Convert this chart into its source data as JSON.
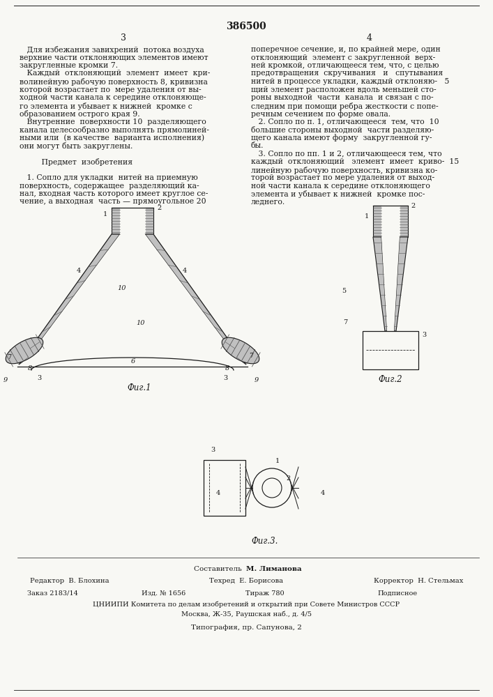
{
  "page_width": 7.07,
  "page_height": 10.0,
  "dpi": 100,
  "bg_color": "#f8f8f4",
  "text_color": "#1a1a1a",
  "patent_number": "386500",
  "col_numbers": [
    "3",
    "4"
  ],
  "left_col_text": [
    "   Для избежания завихрений  потока воздуха",
    "верхние части отклоняющих элементов имеют",
    "закругленные кромки 7.",
    "   Каждый  отклоняющий  элемент  имеет  кри-",
    "волинейную рабочую поверхность 8, кривизна",
    "которой возрастает по  мере удаления от вы-",
    "ходной части канала к середине отклоняюще-",
    "го элемента и убывает к нижней  кромке с",
    "образованием острого края 9.",
    "   Внутренние  поверхности 10  разделяющего",
    "канала целесообразно выполнять прямолиней-",
    "ными или  (в качестве  варианта исполнения)",
    "они могут быть закруглены.",
    "",
    "         Предмет  изобретения",
    "",
    "   1. Сопло для укладки  нитей на приемную",
    "поверхность, содержащее  разделяющий ка-",
    "нал, входная часть которого имеет круглое се-",
    "чение, а выходная  часть — прямоугольное 20"
  ],
  "right_col_text": [
    "поперечное сечение, и, по крайней мере, один",
    "отклоняющий  элемент с закругленной  верх-",
    "ней кромкой, отличающееся тем, что, с целью",
    "предотвращения  скручивания   и   спутывания",
    "нитей в процессе укладки, каждый отклоняю-   5",
    "щий элемент расположен вдоль меньшей сто-",
    "роны выходной  части  канала  и связан с по-",
    "следним при помощи ребра жесткости с попе-",
    "речным сечением по форме овала.",
    "   2. Сопло по п. 1, отличающееся  тем, что  10",
    "большие стороны выходной  части разделяю-",
    "щего канала имеют форму  закругленной гу-",
    "бы.",
    "   3. Сопло по пп. 1 и 2, отличающееся тем, что",
    "каждый  отклоняющий   элемент  имеет  криво-  15",
    "линейную рабочую поверхность, кривизна ко-",
    "торой возрастает по мере удаления от выход-",
    "ной части канала к середине отклоняющего",
    "элемента и убывает к нижней  кромке пос-",
    "леднего."
  ],
  "bottom_composer": "Составитель  М. Лиманова",
  "bottom_editor": "Редактор  В. Блохина",
  "bottom_tech": "Техред  Е. Борисова",
  "bottom_corrector": "Корректор  Н. Стельмах",
  "bottom_order": "Заказ 2183/14",
  "bottom_izd": "Изд. № 1656",
  "bottom_tirazh": "Тираж 780",
  "bottom_podpisnoe": "Подписное",
  "bottom_cniipi": "ЦНИИПИ Комитета по делам изобретений и открытий при Совете Министров СССР",
  "bottom_moscow": "Москва, Ж-35, Раушская наб., д. 4/5",
  "bottom_typografia": "Типография, пр. Сапунова, 2"
}
